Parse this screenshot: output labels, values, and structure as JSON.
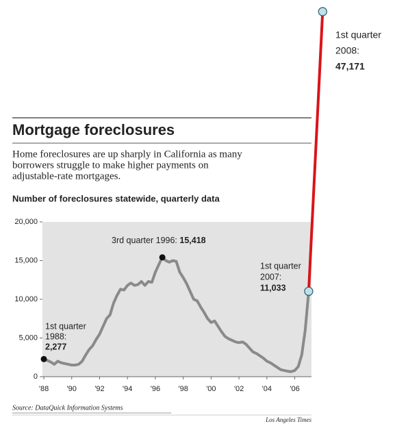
{
  "chart_data": {
    "type": "line",
    "title": "Mortgage foreclosures",
    "subtitle_lines": [
      "Home foreclosures are up sharply in California as many",
      "borrowers struggle to make higher payments on",
      "adjustable-rate mortgages."
    ],
    "y_label": "Number of foreclosures statewide, quarterly data",
    "source": "Source: DataQuick Information Systems",
    "credit": "Los Angeles Times",
    "xlim": [
      1987.9,
      2007.2
    ],
    "xticks": [
      {
        "value": 1988,
        "label": "'88"
      },
      {
        "value": 1990,
        "label": "'90"
      },
      {
        "value": 1992,
        "label": "'92"
      },
      {
        "value": 1994,
        "label": "'94"
      },
      {
        "value": 1996,
        "label": "'96"
      },
      {
        "value": 1998,
        "label": "'98"
      },
      {
        "value": 2000,
        "label": "'00"
      },
      {
        "value": 2002,
        "label": "'02"
      },
      {
        "value": 2004,
        "label": "'04"
      },
      {
        "value": 2006,
        "label": "'06"
      }
    ],
    "ylim": [
      0,
      20000
    ],
    "yticks": [
      {
        "value": 0,
        "label": "0"
      },
      {
        "value": 5000,
        "label": "5,000"
      },
      {
        "value": 10000,
        "label": "10,000"
      },
      {
        "value": 15000,
        "label": "15,000"
      },
      {
        "value": 20000,
        "label": "20,000"
      }
    ],
    "grid": false,
    "series": [
      {
        "color": "#8a8a8a",
        "x": [
          1988,
          1988.25,
          1988.5,
          1988.75,
          1989,
          1989.25,
          1989.5,
          1989.75,
          1990,
          1990.25,
          1990.5,
          1990.75,
          1991,
          1991.25,
          1991.5,
          1991.75,
          1992,
          1992.25,
          1992.5,
          1992.75,
          1993,
          1993.25,
          1993.5,
          1993.75,
          1994,
          1994.25,
          1994.5,
          1994.75,
          1995,
          1995.25,
          1995.5,
          1995.75,
          1996,
          1996.25,
          1996.5,
          1996.75,
          1997,
          1997.25,
          1997.5,
          1997.75,
          1998,
          1998.25,
          1998.5,
          1998.75,
          1999,
          1999.25,
          1999.5,
          1999.75,
          2000,
          2000.25,
          2000.5,
          2000.75,
          2001,
          2001.25,
          2001.5,
          2001.75,
          2002,
          2002.25,
          2002.5,
          2002.75,
          2003,
          2003.25,
          2003.5,
          2003.75,
          2004,
          2004.25,
          2004.5,
          2004.75,
          2005,
          2005.25,
          2005.5,
          2005.75,
          2006,
          2006.25,
          2006.5,
          2006.75,
          2007
        ],
        "values": [
          2277,
          2100,
          1900,
          1600,
          2000,
          1800,
          1700,
          1600,
          1500,
          1500,
          1600,
          2000,
          2800,
          3500,
          4000,
          4800,
          5500,
          6500,
          7500,
          8000,
          9500,
          10500,
          11300,
          11200,
          11800,
          12100,
          11800,
          11900,
          12300,
          11800,
          12300,
          12200,
          13500,
          14500,
          15418,
          15000,
          14800,
          15000,
          14900,
          13500,
          12800,
          12000,
          11000,
          10000,
          9800,
          9000,
          8300,
          7500,
          7000,
          7200,
          6500,
          5800,
          5200,
          4900,
          4700,
          4500,
          4400,
          4500,
          4200,
          3700,
          3200,
          3000,
          2700,
          2400,
          2000,
          1800,
          1500,
          1200,
          900,
          800,
          700,
          650,
          800,
          1300,
          2800,
          6000,
          11033
        ],
        "value_labels": [
          "2,277",
          null,
          null,
          null,
          null,
          null,
          null,
          null,
          null,
          null,
          null,
          null,
          null,
          null,
          null,
          null,
          null,
          null,
          null,
          null,
          null,
          null,
          null,
          null,
          null,
          null,
          null,
          null,
          null,
          null,
          null,
          null,
          null,
          null,
          "15,418",
          null,
          null,
          null,
          null,
          null,
          null,
          null,
          null,
          null,
          null,
          null,
          null,
          null,
          null,
          null,
          null,
          null,
          null,
          null,
          null,
          null,
          null,
          null,
          null,
          null,
          null,
          null,
          null,
          null,
          null,
          null,
          null,
          null,
          null,
          null,
          null,
          null,
          null,
          null,
          null,
          null,
          "11,033"
        ]
      },
      {
        "color": "#d9141a",
        "x": [
          2007,
          2008
        ],
        "values": [
          11033,
          47171
        ],
        "value_labels": [
          null,
          "47,171"
        ]
      }
    ],
    "annotations": [
      {
        "lines": [
          "1st quarter",
          "1988:"
        ]
      },
      {
        "lines": [
          "3rd quarter 1996: "
        ]
      },
      {
        "lines": [
          "1st quarter",
          "2007:"
        ]
      },
      {
        "lines": [
          "1st quarter",
          "2008:"
        ]
      }
    ]
  }
}
